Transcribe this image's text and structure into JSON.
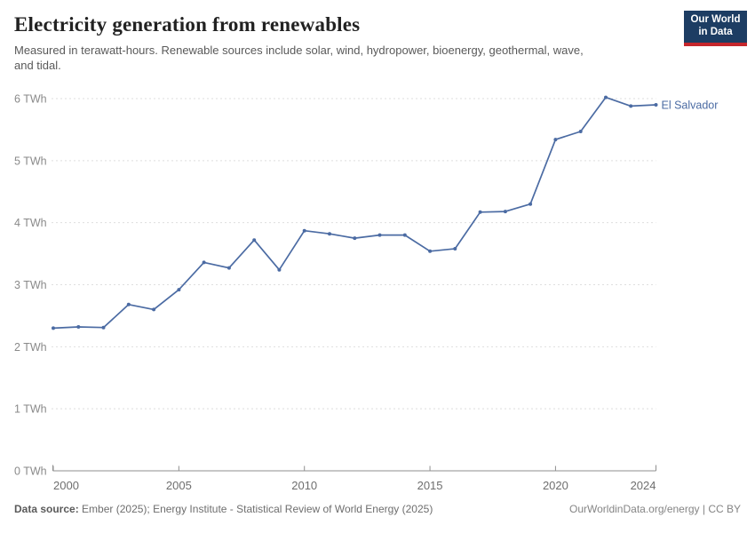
{
  "header": {
    "title": "Electricity generation from renewables",
    "subtitle": "Measured in terawatt-hours. Renewable sources include solar, wind, hydropower, bioenergy, geothermal, wave, and tidal.",
    "logo": {
      "line1": "Our World",
      "line2": "in Data"
    }
  },
  "chart_data": {
    "type": "line",
    "title": "Electricity generation from renewables",
    "unit": "TWh",
    "x": [
      2000,
      2001,
      2002,
      2003,
      2004,
      2005,
      2006,
      2007,
      2008,
      2009,
      2010,
      2011,
      2012,
      2013,
      2014,
      2015,
      2016,
      2017,
      2018,
      2019,
      2020,
      2021,
      2022,
      2023,
      2024
    ],
    "series": [
      {
        "name": "El Salvador",
        "color": "#4B6BA3",
        "values": [
          2.3,
          2.32,
          2.31,
          2.68,
          2.6,
          2.92,
          3.36,
          3.27,
          3.72,
          3.24,
          3.87,
          3.82,
          3.75,
          3.8,
          3.8,
          3.54,
          3.58,
          4.17,
          4.18,
          4.3,
          5.34,
          5.47,
          6.02,
          5.88,
          5.9
        ]
      }
    ],
    "xticks": [
      2000,
      2005,
      2010,
      2015,
      2020,
      2024
    ],
    "yticks": [
      0,
      1,
      2,
      3,
      4,
      5,
      6
    ],
    "xlim": [
      2000,
      2024
    ],
    "ylim": [
      0,
      6
    ],
    "grid": "dashed-horizontal",
    "legend_position": "end-of-line-label"
  },
  "footer": {
    "datasource_label": "Data source:",
    "datasource_text": "Ember (2025); Energy Institute - Statistical Review of World Energy (2025)",
    "credit": "OurWorldinData.org/energy | CC BY"
  },
  "colors": {
    "line": "#4B6BA3",
    "logo_bg": "#1D3D63",
    "logo_stripe": "#C5262C",
    "gridline": "#DEDEDE",
    "axis": "#8F8F8F",
    "y_tick_label": "#8A8A8A",
    "x_tick_label": "#6E6E6E"
  }
}
